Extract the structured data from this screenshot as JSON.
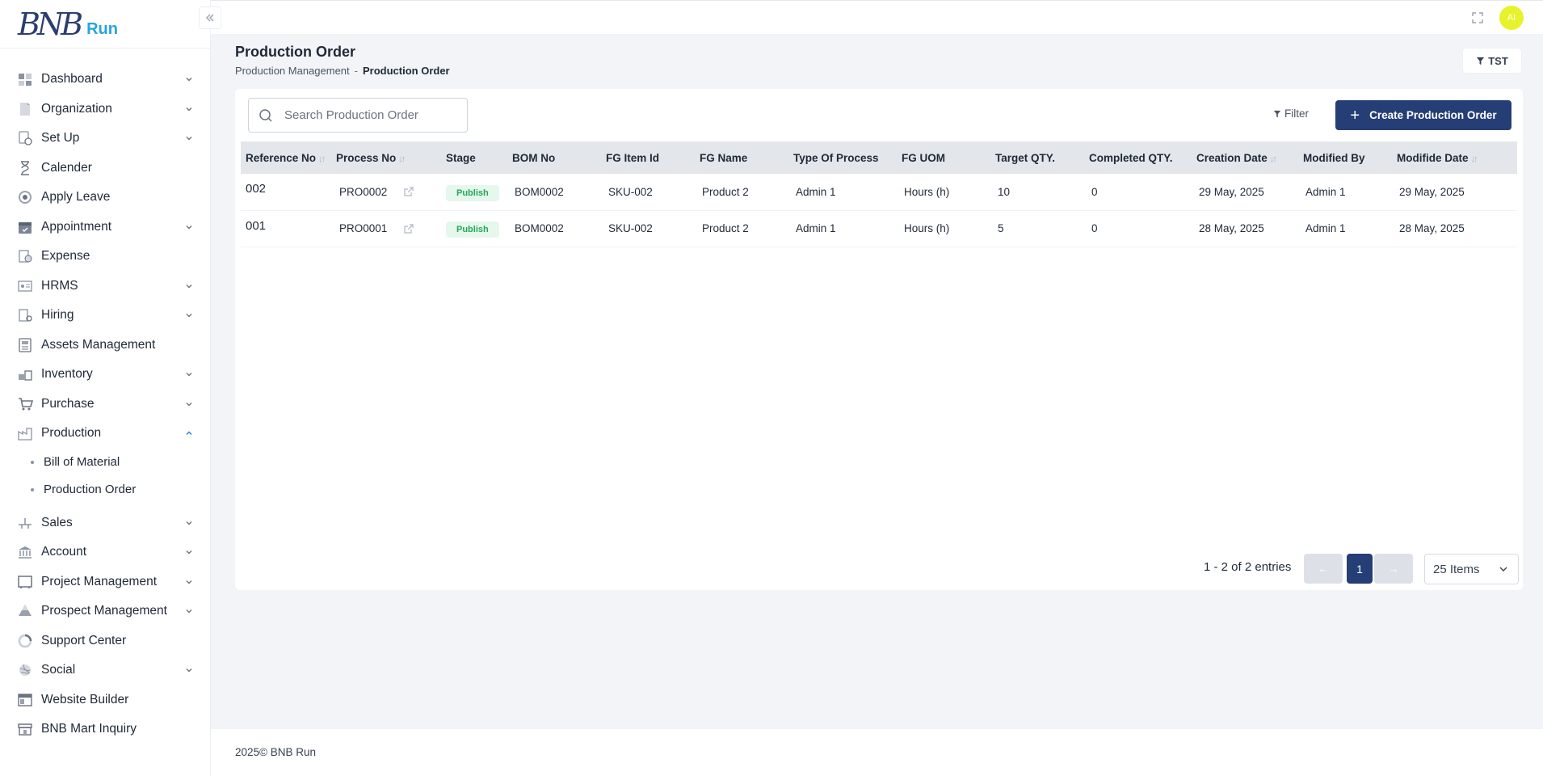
{
  "brand": {
    "logo_mark": "BNB",
    "logo_text": "Run"
  },
  "topbar": {
    "avatar_initials": "AI"
  },
  "sidebar": {
    "items": [
      {
        "label": "Dashboard",
        "icon": "dashboard-icon",
        "chevron": "down"
      },
      {
        "label": "Organization",
        "icon": "organization-icon",
        "chevron": "down"
      },
      {
        "label": "Set Up",
        "icon": "setup-icon",
        "chevron": "down"
      },
      {
        "label": "Calender",
        "icon": "hourglass-icon",
        "chevron": "none"
      },
      {
        "label": "Apply Leave",
        "icon": "leave-icon",
        "chevron": "none"
      },
      {
        "label": "Appointment",
        "icon": "calendar-icon",
        "chevron": "down"
      },
      {
        "label": "Expense",
        "icon": "expense-icon",
        "chevron": "none"
      },
      {
        "label": "HRMS",
        "icon": "hrms-icon",
        "chevron": "down"
      },
      {
        "label": "Hiring",
        "icon": "hiring-icon",
        "chevron": "down"
      },
      {
        "label": "Assets Management",
        "icon": "assets-icon",
        "chevron": "none"
      },
      {
        "label": "Inventory",
        "icon": "inventory-icon",
        "chevron": "down"
      },
      {
        "label": "Purchase",
        "icon": "cart-icon",
        "chevron": "down"
      },
      {
        "label": "Production",
        "icon": "factory-icon",
        "chevron": "up"
      }
    ],
    "production_sub": [
      {
        "label": "Bill of Material"
      },
      {
        "label": "Production Order"
      }
    ],
    "items_after": [
      {
        "label": "Sales",
        "icon": "sales-icon",
        "chevron": "down"
      },
      {
        "label": "Account",
        "icon": "bank-icon",
        "chevron": "down"
      },
      {
        "label": "Project Management",
        "icon": "project-icon",
        "chevron": "down"
      },
      {
        "label": "Prospect Management",
        "icon": "prospect-icon",
        "chevron": "down"
      },
      {
        "label": "Support Center",
        "icon": "support-icon",
        "chevron": "none"
      },
      {
        "label": "Social",
        "icon": "social-icon",
        "chevron": "down"
      },
      {
        "label": "Website Builder",
        "icon": "website-icon",
        "chevron": "none"
      },
      {
        "label": "BNB Mart Inquiry",
        "icon": "store-icon",
        "chevron": "none"
      }
    ]
  },
  "header": {
    "title": "Production Order",
    "breadcrumb": [
      "Production Management",
      "Production Order"
    ],
    "breadcrumb_sep": "-",
    "tst_label": "TST"
  },
  "toolbar": {
    "search_placeholder": "Search Production Order",
    "filter_label": "Filter",
    "create_label": "Create Production Order"
  },
  "table": {
    "columns": [
      "Reference No",
      "Process No",
      "Stage",
      "BOM No",
      "FG Item Id",
      "FG Name",
      "Type Of Process",
      "FG UOM",
      "Target QTY.",
      "Completed QTY.",
      "Creation Date",
      "Modified By",
      "Modifide Date"
    ],
    "rows": [
      {
        "ref": "002",
        "process": "PRO0002",
        "stage": "Publish",
        "bom": "BOM0002",
        "item": "SKU-002",
        "name": "Product 2",
        "type": "Admin 1",
        "uom": "Hours (h)",
        "target": "10",
        "completed": "0",
        "created": "29 May, 2025",
        "modified_by": "Admin 1",
        "modified": "29 May, 2025"
      },
      {
        "ref": "001",
        "process": "PRO0001",
        "stage": "Publish",
        "bom": "BOM0002",
        "item": "SKU-002",
        "name": "Product 2",
        "type": "Admin 1",
        "uom": "Hours (h)",
        "target": "5",
        "completed": "0",
        "created": "28 May, 2025",
        "modified_by": "Admin 1",
        "modified": "28 May, 2025"
      }
    ]
  },
  "pagination": {
    "entries_text": "1 - 2 of 2 entries",
    "prev_label": "←",
    "current_page": "1",
    "next_label": "→",
    "items_per_page": "25 Items"
  },
  "footer": {
    "text": "2025© BNB Run"
  },
  "colors": {
    "primary": "#263e76",
    "accent": "#27a4dc",
    "publish_bg": "#e6f7ec",
    "publish_text": "#22a85a",
    "avatar": "#e8f22a"
  }
}
